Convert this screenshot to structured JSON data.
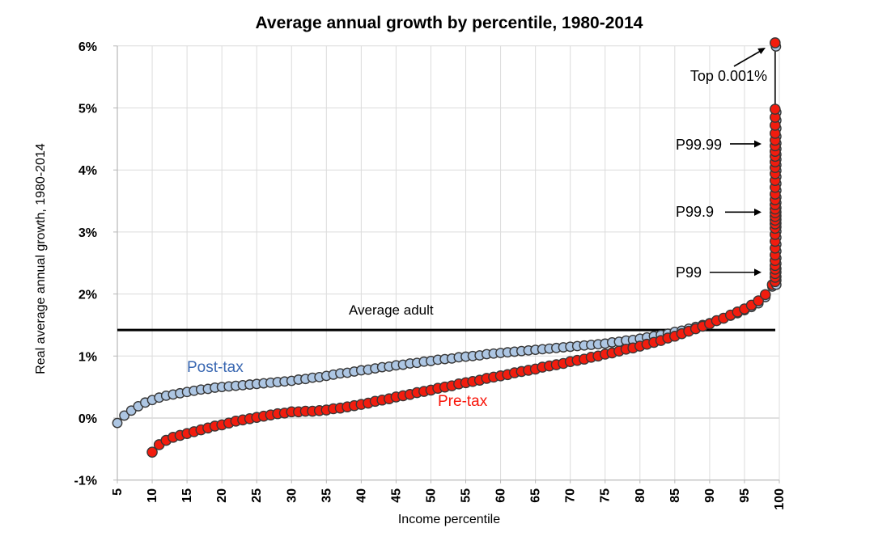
{
  "title": "Average annual growth by percentile, 1980-2014",
  "axes": {
    "y_title": "Real average annual growth, 1980-2014",
    "x_title": "Income percentile",
    "y_tick_values": [
      6,
      5,
      4,
      3,
      2,
      1,
      0,
      -1
    ],
    "y_tick_labels": [
      "6%",
      "5%",
      "4%",
      "3%",
      "2%",
      "1%",
      "0%",
      "-1%"
    ],
    "x_tick_values": [
      5,
      10,
      15,
      20,
      25,
      30,
      35,
      40,
      45,
      50,
      55,
      60,
      65,
      70,
      75,
      80,
      85,
      90,
      95,
      100
    ]
  },
  "series_labels": {
    "post_tax": "Post-tax",
    "pre_tax": "Pre-tax"
  },
  "annotations": {
    "average_adult": {
      "label": "Average adult",
      "value": 1.42
    },
    "top_0001": {
      "label": "Top 0.001%",
      "points_to": 6.05
    },
    "p9999": {
      "label": "P99.99",
      "points_to": 4.42
    },
    "p999": {
      "label": "P99.9",
      "points_to": 3.32
    },
    "p99": {
      "label": "P99",
      "points_to": 2.35
    }
  },
  "colors": {
    "pre_tax_fill": "#f21c0e",
    "post_tax_fill": "#adc6e3",
    "marker_stroke": "#383838",
    "pre_tax_label": "#f8150a",
    "post_tax_label": "#3a68b2",
    "grid": "#dcdcdc",
    "grid_zero": "#c2c2c2",
    "axis": "#b8b8b8",
    "average_line": "#000000"
  },
  "chart_data": {
    "type": "scatter",
    "title": "Average annual growth by percentile, 1980-2014",
    "xlabel": "Income percentile",
    "ylabel": "Real average annual growth, 1980-2014",
    "xlim": [
      5,
      100
    ],
    "ylim": [
      -1,
      6
    ],
    "grid": true,
    "legend_position": "inline-labels",
    "average_adult_line": 1.42,
    "series": [
      {
        "name": "Post-tax",
        "marker": "circle",
        "color": "#adc6e3",
        "x_start": 5,
        "x_step": 1,
        "y": [
          -0.08,
          0.04,
          0.12,
          0.19,
          0.25,
          0.29,
          0.33,
          0.36,
          0.38,
          0.4,
          0.42,
          0.44,
          0.46,
          0.47,
          0.49,
          0.5,
          0.51,
          0.52,
          0.53,
          0.54,
          0.55,
          0.56,
          0.57,
          0.58,
          0.59,
          0.6,
          0.62,
          0.63,
          0.65,
          0.66,
          0.68,
          0.7,
          0.72,
          0.73,
          0.75,
          0.77,
          0.78,
          0.8,
          0.82,
          0.83,
          0.85,
          0.86,
          0.88,
          0.89,
          0.91,
          0.92,
          0.94,
          0.95,
          0.96,
          0.98,
          0.99,
          1.0,
          1.01,
          1.03,
          1.04,
          1.05,
          1.06,
          1.07,
          1.08,
          1.09,
          1.1,
          1.11,
          1.12,
          1.13,
          1.14,
          1.15,
          1.16,
          1.17,
          1.18,
          1.19,
          1.2,
          1.22,
          1.23,
          1.25,
          1.26,
          1.28,
          1.3,
          1.32,
          1.34,
          1.36,
          1.39,
          1.41,
          1.44,
          1.47,
          1.5,
          1.53,
          1.57,
          1.61,
          1.65,
          1.69,
          1.74,
          1.79,
          1.85,
          1.95,
          2.12
        ]
      },
      {
        "name": "Pre-tax",
        "marker": "circle",
        "color": "#f21c0e",
        "x_start": 10,
        "x_step": 1,
        "y": [
          -0.55,
          -0.43,
          -0.36,
          -0.31,
          -0.28,
          -0.25,
          -0.22,
          -0.19,
          -0.16,
          -0.13,
          -0.11,
          -0.08,
          -0.05,
          -0.03,
          -0.01,
          0.01,
          0.03,
          0.05,
          0.07,
          0.08,
          0.1,
          0.1,
          0.11,
          0.11,
          0.12,
          0.13,
          0.15,
          0.16,
          0.18,
          0.2,
          0.22,
          0.24,
          0.27,
          0.29,
          0.31,
          0.34,
          0.36,
          0.38,
          0.41,
          0.43,
          0.45,
          0.48,
          0.5,
          0.52,
          0.55,
          0.57,
          0.59,
          0.61,
          0.64,
          0.66,
          0.68,
          0.7,
          0.73,
          0.75,
          0.77,
          0.79,
          0.82,
          0.84,
          0.86,
          0.88,
          0.91,
          0.93,
          0.95,
          0.98,
          1.0,
          1.03,
          1.05,
          1.08,
          1.11,
          1.13,
          1.16,
          1.19,
          1.22,
          1.25,
          1.29,
          1.32,
          1.36,
          1.4,
          1.44,
          1.48,
          1.52,
          1.57,
          1.61,
          1.66,
          1.71,
          1.76,
          1.82,
          1.89,
          1.99,
          2.15
        ]
      }
    ],
    "top_tail": {
      "x": 99.4,
      "pre_tax_values": [
        2.2,
        2.27,
        2.33,
        2.4,
        2.46,
        2.54,
        2.63,
        2.74,
        2.85,
        2.96,
        3.06,
        3.13,
        3.19,
        3.25,
        3.31,
        3.37,
        3.44,
        3.52,
        3.61,
        3.72,
        3.83,
        3.94,
        4.04,
        4.13,
        4.22,
        4.3,
        4.39,
        4.48,
        4.59,
        4.72,
        4.85,
        4.98
      ],
      "post_tax_offset": -0.05,
      "top_point": 6.05
    }
  }
}
